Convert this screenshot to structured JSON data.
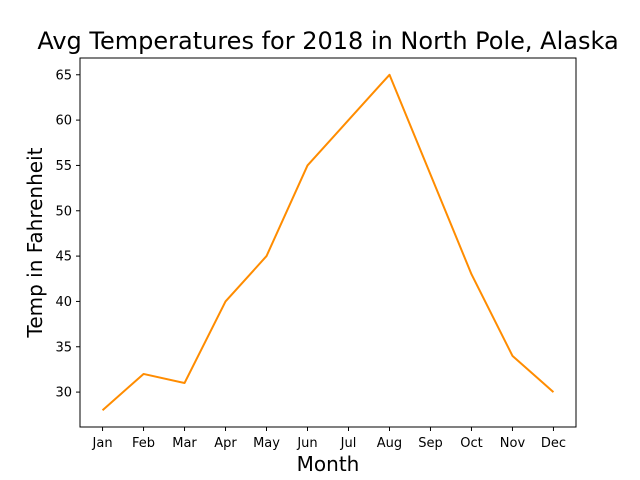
{
  "chart_data": {
    "type": "line",
    "title": "Avg Temperatures for 2018 in North Pole, Alaska",
    "xlabel": "Month",
    "ylabel": "Temp in Fahrenheit",
    "categories": [
      "Jan",
      "Feb",
      "Mar",
      "Apr",
      "May",
      "Jun",
      "Jul",
      "Aug",
      "Sep",
      "Oct",
      "Nov",
      "Dec"
    ],
    "series": [
      {
        "values": [
          28,
          32,
          31,
          40,
          45,
          55,
          60,
          65,
          54,
          43,
          34,
          30
        ],
        "color": "#ff8c00"
      }
    ],
    "yticks": [
      30,
      35,
      40,
      45,
      50,
      55,
      60,
      65
    ],
    "ylim": [
      26.15,
      66.85
    ],
    "grid": false,
    "legend": false
  }
}
